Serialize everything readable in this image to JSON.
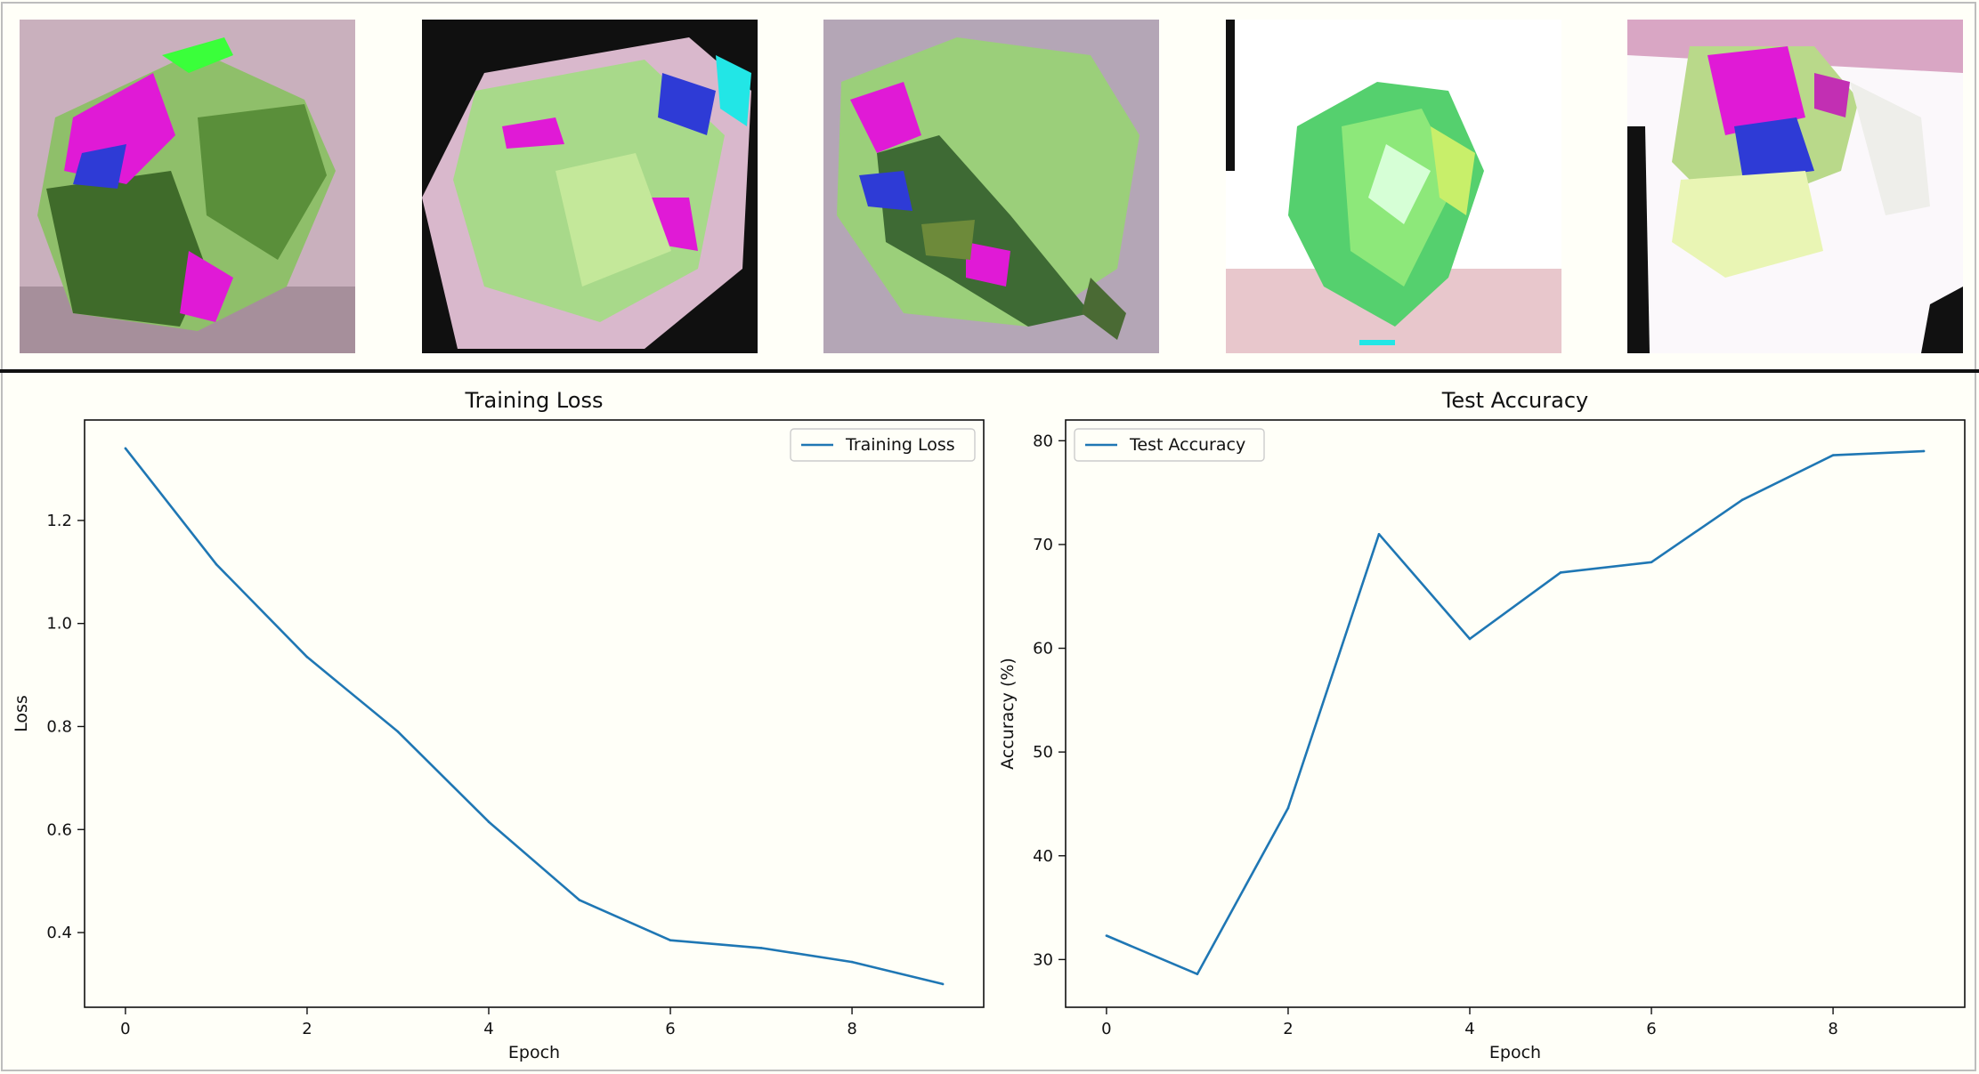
{
  "figure": {
    "image_strip": {
      "tiles": [
        {
          "icon": "leaf-image"
        },
        {
          "icon": "leaf-image"
        },
        {
          "icon": "leaf-image"
        },
        {
          "icon": "leaf-image"
        },
        {
          "icon": "leaf-image"
        }
      ]
    },
    "colors": {
      "series": "#1f77b4",
      "background": "#fffff8",
      "axes": "#111111",
      "divider": "#111111",
      "leaf_green": "#7ec857",
      "leaf_magenta": "#e01ad6",
      "leaf_blue": "#2e3bd6"
    }
  },
  "chart_data": [
    {
      "type": "line",
      "title": "Training Loss",
      "xlabel": "Epoch",
      "ylabel": "Loss",
      "legend": {
        "label": "Training Loss",
        "position": "top-right"
      },
      "xlim": [
        -0.45,
        9.45
      ],
      "ylim": [
        0.255,
        1.395
      ],
      "xticks": [
        0,
        2,
        4,
        6,
        8
      ],
      "xtick_labels": [
        "0",
        "2",
        "4",
        "6",
        "8"
      ],
      "yticks": [
        0.4,
        0.6,
        0.8,
        1.0,
        1.2
      ],
      "ytick_labels": [
        "0.4",
        "0.6",
        "0.8",
        "1.0",
        "1.2"
      ],
      "grid": false,
      "series": [
        {
          "name": "Training Loss",
          "x": [
            0,
            1,
            2,
            3,
            4,
            5,
            6,
            7,
            8,
            9
          ],
          "y": [
            1.34,
            1.115,
            0.935,
            0.79,
            0.615,
            0.463,
            0.385,
            0.37,
            0.343,
            0.3
          ]
        }
      ]
    },
    {
      "type": "line",
      "title": "Test Accuracy",
      "xlabel": "Epoch",
      "ylabel": "Accuracy (%)",
      "legend": {
        "label": "Test Accuracy",
        "position": "top-left"
      },
      "xlim": [
        -0.45,
        9.45
      ],
      "ylim": [
        25.4,
        82.0
      ],
      "xticks": [
        0,
        2,
        4,
        6,
        8
      ],
      "xtick_labels": [
        "0",
        "2",
        "4",
        "6",
        "8"
      ],
      "yticks": [
        30,
        40,
        50,
        60,
        70,
        80
      ],
      "ytick_labels": [
        "30",
        "40",
        "50",
        "60",
        "70",
        "80"
      ],
      "grid": false,
      "series": [
        {
          "name": "Test Accuracy",
          "x": [
            0,
            1,
            2,
            3,
            4,
            5,
            6,
            7,
            8,
            9
          ],
          "y": [
            32.3,
            28.6,
            44.6,
            71.0,
            60.9,
            67.3,
            68.3,
            74.3,
            78.6,
            79.0
          ]
        }
      ]
    }
  ]
}
